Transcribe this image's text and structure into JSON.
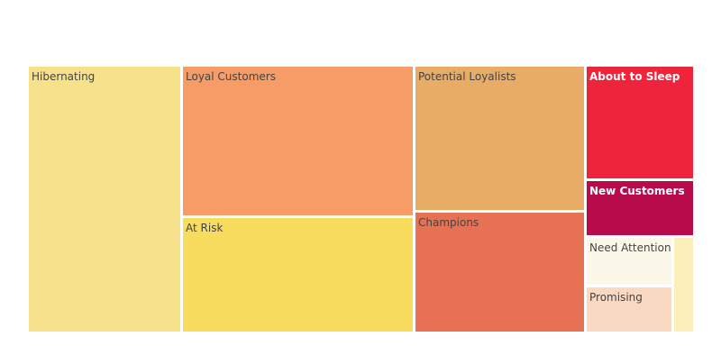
{
  "chart_data": {
    "type": "treemap",
    "title": "",
    "segments": [
      {
        "label": "Hibernating",
        "color": "#f7e28b",
        "label_color": "#444444",
        "bold": false
      },
      {
        "label": "Loyal Customers",
        "color": "#f69c67",
        "label_color": "#444444",
        "bold": false
      },
      {
        "label": "At Risk",
        "color": "#f7dc5d",
        "label_color": "#444444",
        "bold": false
      },
      {
        "label": "Potential Loyalists",
        "color": "#e8ac66",
        "label_color": "#444444",
        "bold": false
      },
      {
        "label": "Champions",
        "color": "#e67153",
        "label_color": "#444444",
        "bold": false
      },
      {
        "label": "About to Sleep",
        "color": "#ee243c",
        "label_color": "#ffffff",
        "bold": true
      },
      {
        "label": "New Customers",
        "color": "#b80b4c",
        "label_color": "#ffffff",
        "bold": true
      },
      {
        "label": "Need Attention",
        "color": "#fcf8e9",
        "label_color": "#444444",
        "bold": false
      },
      {
        "label": "Promising",
        "color": "#fad9c2",
        "label_color": "#444444",
        "bold": false
      },
      {
        "label": "",
        "color": "#fbefba",
        "label_color": "#444444",
        "bold": false
      }
    ],
    "relative_area_percent": [
      18.1,
      17.9,
      14.2,
      16.0,
      12.8,
      7.9,
      4.0,
      3.4,
      3.3,
      1.2
    ]
  }
}
